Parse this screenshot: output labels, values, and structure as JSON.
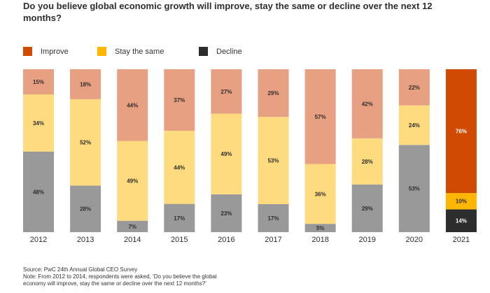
{
  "title": "Do you believe global economic growth will improve, stay the same or decline over the next 12 months?",
  "legend": [
    {
      "label": "Improve",
      "color": "#d04a02"
    },
    {
      "label": "Stay the same",
      "color": "#ffb600"
    },
    {
      "label": "Decline",
      "color": "#2d2d2d"
    }
  ],
  "chart_data": {
    "type": "bar",
    "stacked": true,
    "orientation": "vertical",
    "ylim": [
      0,
      100
    ],
    "categories": [
      "2012",
      "2013",
      "2014",
      "2015",
      "2016",
      "2017",
      "2018",
      "2019",
      "2020",
      "2021"
    ],
    "series": [
      {
        "name": "Decline",
        "values": [
          48,
          28,
          7,
          17,
          23,
          17,
          5,
          29,
          53,
          14
        ],
        "labels": [
          "48%",
          "28%",
          "7%",
          "17%",
          "23%",
          "17%",
          "5%",
          "29%",
          "53%",
          "14%"
        ]
      },
      {
        "name": "Stay the same",
        "values": [
          34,
          52,
          49,
          44,
          49,
          53,
          36,
          28,
          24,
          10
        ],
        "labels": [
          "34%",
          "52%",
          "49%",
          "44%",
          "49%",
          "53%",
          "36%",
          "28%",
          "24%",
          "10%"
        ]
      },
      {
        "name": "Improve",
        "values": [
          15,
          18,
          44,
          37,
          27,
          29,
          57,
          42,
          22,
          76
        ],
        "labels": [
          "15%",
          "18%",
          "44%",
          "37%",
          "27%",
          "29%",
          "57%",
          "42%",
          "22%",
          "76%"
        ]
      }
    ],
    "colors_muted": {
      "Decline": "#999999",
      "Stay the same": "#ffdb7f",
      "Improve": "#e8a082"
    },
    "colors_highlight": {
      "Decline": "#2d2d2d",
      "Stay the same": "#ffb600",
      "Improve": "#d04a02"
    },
    "highlight_category": "2021"
  },
  "footer": {
    "source": "Source: PwC 24th Annual Global CEO Survey",
    "note_line1": "Note: From 2012 to 2014, respondents were asked, ‘Do you believe the global",
    "note_line2": "economy will improve, stay the same or decline over the next 12 months?’"
  }
}
